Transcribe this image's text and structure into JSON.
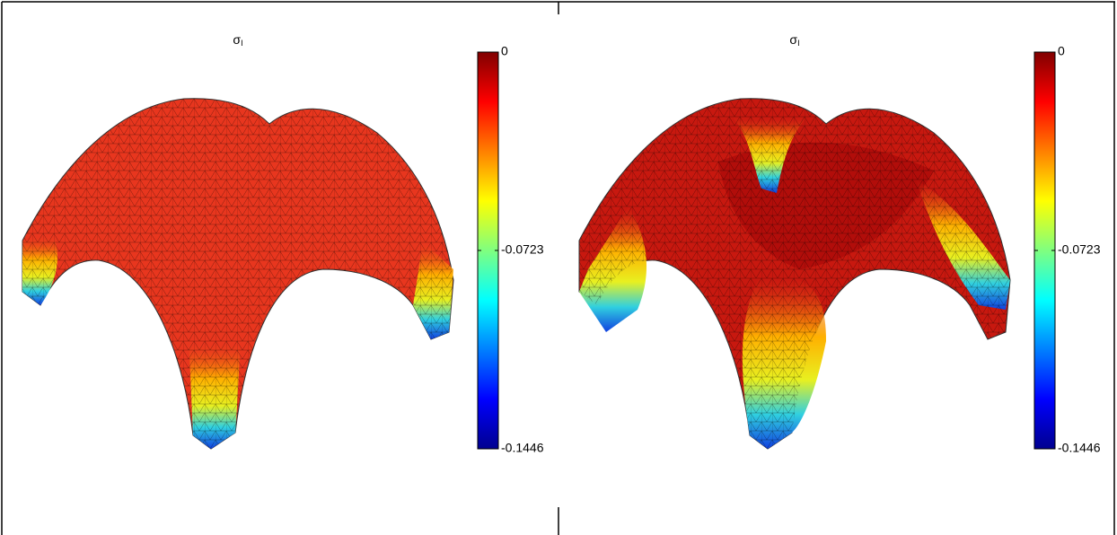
{
  "chart_data": [
    {
      "type": "surface",
      "title": "σ",
      "title_sub": "I",
      "clim": [
        -0.1446,
        0
      ],
      "cticks": [
        0,
        -0.0723,
        -0.1446
      ]
    },
    {
      "type": "surface",
      "title": "σ",
      "title_sub": "I",
      "clim": [
        -0.1446,
        0
      ],
      "cticks": [
        0,
        -0.0723,
        -0.1446
      ]
    }
  ]
}
